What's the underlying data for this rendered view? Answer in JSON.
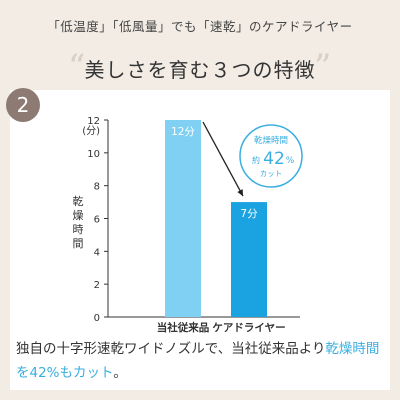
{
  "tagline": "「低温度」「低風量」でも「速乾」のケアドライヤー",
  "headline": "美しさを育む３つの特徴",
  "badge_number": "2",
  "caption": {
    "part1": "独自の十字形速乾ワイドノズルで、当社従来品より",
    "highlight1": "乾燥時間",
    "highlight2": "を42%もカット",
    "part2": "。"
  },
  "callout": {
    "line1": "乾燥時間",
    "prefix": "約",
    "value": "42",
    "unit": "%",
    "line3": "カット"
  },
  "colors": {
    "bar_previous": "#7fd0f2",
    "bar_new": "#1aa3e0",
    "accent": "#3aaee0",
    "badge": "#8d7b73"
  },
  "chart_data": {
    "type": "bar",
    "ylabel": "乾燥時間",
    "yunit": "(分)",
    "ylim": [
      0,
      12
    ],
    "yticks": [
      "0",
      "2",
      "4",
      "6",
      "8",
      "10",
      "12"
    ],
    "categories": [
      "当社従来品",
      "ケアドライヤー"
    ],
    "values": [
      12,
      7
    ],
    "data_labels": [
      "12分",
      "7分"
    ],
    "grid": false
  }
}
